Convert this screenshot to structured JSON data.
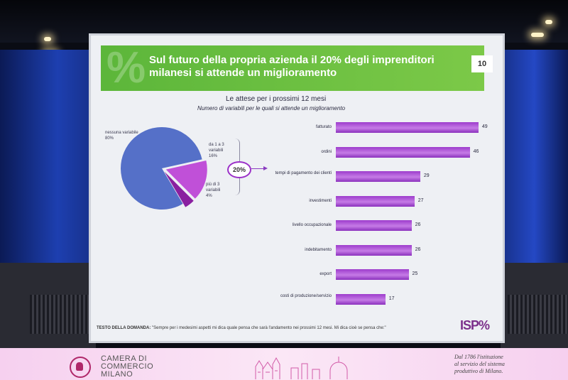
{
  "slide": {
    "title": "Sul futuro della propria azienda il 20% degli imprenditori milanesi si attende un miglioramento",
    "page_number": "10",
    "chart_title": "Le attese per i prossimi 12 mesi",
    "chart_subtitle": "Numero di variabili per le quali si attende un miglioramento",
    "callout": "20%",
    "footnote_label": "TESTO DELLA DOMANDA:",
    "footnote_text": "\"Sempre per i medesimi aspetti mi dica quale pensa che sarà l'andamento nei prossimi 12 mesi. Mi dica cioè se pensa che:\"",
    "logo_text": "ISP%"
  },
  "chart_data": [
    {
      "type": "pie",
      "slices": [
        {
          "label": "nessuna variabile",
          "value": 80,
          "display": "80%",
          "color": "#5570c8"
        },
        {
          "label": "da 1 a 3 variabili",
          "value": 16,
          "display": "16%",
          "color": "#c050d8"
        },
        {
          "label": "più di 3 variabili",
          "value": 4,
          "display": "4%",
          "color": "#8a1fa0"
        }
      ]
    },
    {
      "type": "bar",
      "orientation": "horizontal",
      "categories": [
        "fatturato",
        "ordini",
        "tempi di pagamento dei clienti",
        "investimenti",
        "livello occupazionale",
        "indebitamento",
        "export",
        "costi di produzione/servizio"
      ],
      "values": [
        49,
        46,
        29,
        27,
        26,
        26,
        25,
        17
      ],
      "color": "#a447d4"
    }
  ],
  "banner": {
    "org_line1": "CAMERA DI",
    "org_line2": "COMMERCIO",
    "org_line3": "MILANO",
    "tagline_line1": "Dal 1786 l'istituzione",
    "tagline_line2": "al servizio del sistema",
    "tagline_line3": "produttivo di Milano."
  }
}
